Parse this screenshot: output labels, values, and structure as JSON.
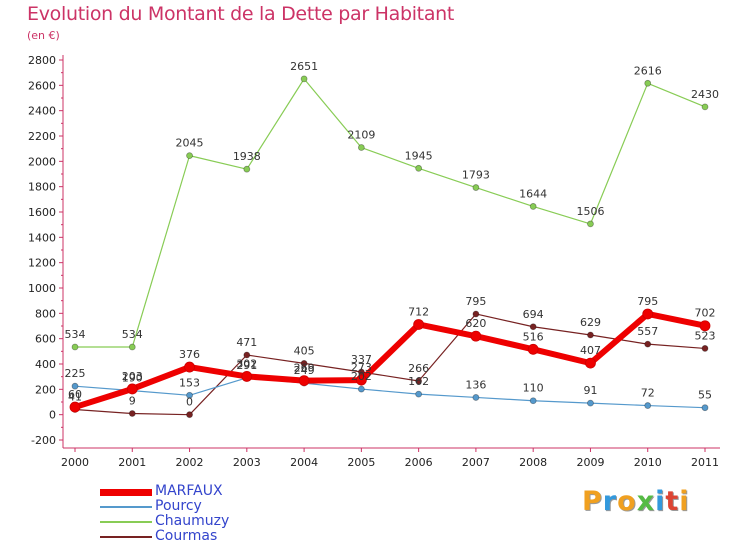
{
  "chart_data": {
    "type": "line",
    "title": "Evolution du Montant de la Dette par Habitant",
    "subtitle": "(en €)",
    "categories": [
      "2000",
      "2001",
      "2002",
      "2003",
      "2004",
      "2005",
      "2006",
      "2007",
      "2008",
      "2009",
      "2010",
      "2011"
    ],
    "ylim": [
      -200,
      2800
    ],
    "yticks": [
      "-200",
      "0",
      "200",
      "400",
      "600",
      "800",
      "1000",
      "1200",
      "1400",
      "1600",
      "1800",
      "2000",
      "2200",
      "2400",
      "2600",
      "2800"
    ],
    "grid": false,
    "legend_position": "bottom-left",
    "series": [
      {
        "name": "MARFAUX",
        "color": "#ee0000",
        "values": [
          60,
          203,
          376,
          302,
          269,
          273,
          712,
          620,
          516,
          407,
          795,
          702
        ],
        "labels": [
          "60",
          "203",
          "376",
          "302",
          "269",
          "273",
          "712",
          "620",
          "516",
          "407",
          "795",
          "702"
        ]
      },
      {
        "name": "Pourcy",
        "color": "#5599cc",
        "values": [
          225,
          190,
          153,
          291,
          249,
          202,
          162,
          136,
          110,
          91,
          72,
          55
        ],
        "labels": [
          "225",
          "190",
          "153",
          "291",
          "249",
          "202",
          "162",
          "136",
          "110",
          "91",
          "72",
          "55"
        ]
      },
      {
        "name": "Chaumuzy",
        "color": "#88cc55",
        "values": [
          534,
          534,
          2045,
          1938,
          2651,
          2109,
          1945,
          1793,
          1644,
          1506,
          2616,
          2430
        ],
        "labels": [
          "534",
          "534",
          "2045",
          "1938",
          "2651",
          "2109",
          "1945",
          "1793",
          "1644",
          "1506",
          "2616",
          "2430"
        ]
      },
      {
        "name": "Courmas",
        "color": "#772222",
        "values": [
          41,
          9,
          0,
          471,
          405,
          337,
          266,
          795,
          694,
          629,
          557,
          523
        ],
        "labels": [
          "41",
          "9",
          "0",
          "471",
          "405",
          "337",
          "266",
          "795",
          "694",
          "629",
          "557",
          "523"
        ]
      }
    ]
  },
  "logo": {
    "letters": [
      "P",
      "r",
      "o",
      "x",
      "i",
      "t",
      "i"
    ],
    "colors": [
      "#f0a020",
      "#3399dd",
      "#f0a020",
      "#55bb44",
      "#3399dd",
      "#dd4433",
      "#f0a020"
    ]
  }
}
